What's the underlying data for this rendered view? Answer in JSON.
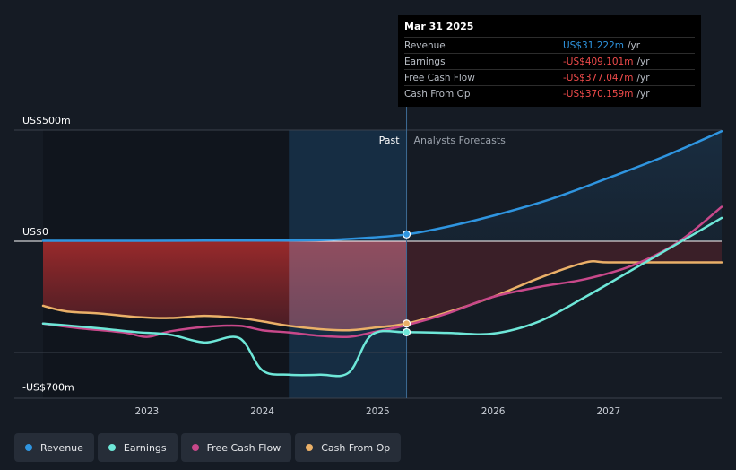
{
  "colors": {
    "revenue": "#2f95e0",
    "earnings": "#6ee7d8",
    "fcf": "#c8488a",
    "cfo": "#eab068",
    "negative": "#ef4b4b"
  },
  "tooltip": {
    "date": "Mar 31 2025",
    "rows": [
      {
        "label": "Revenue",
        "value": "US$31.222m",
        "unit": "/yr",
        "color": "#2f95e0"
      },
      {
        "label": "Earnings",
        "value": "-US$409.101m",
        "unit": "/yr",
        "color": "#ef4b4b"
      },
      {
        "label": "Free Cash Flow",
        "value": "-US$377.047m",
        "unit": "/yr",
        "color": "#ef4b4b"
      },
      {
        "label": "Cash From Op",
        "value": "-US$370.159m",
        "unit": "/yr",
        "color": "#ef4b4b"
      }
    ]
  },
  "chart_data": {
    "type": "line",
    "y_unit": "US$m",
    "ylim": [
      -700,
      500
    ],
    "xlim": [
      2022.1,
      2027.98
    ],
    "x_ticks": [
      2023,
      2024,
      2025,
      2026,
      2027
    ],
    "x_tick_labels": [
      "2023",
      "2024",
      "2025",
      "2026",
      "2027"
    ],
    "y_axis_labels": [
      {
        "value": 500,
        "text": "US$500m"
      },
      {
        "value": 0,
        "text": "US$0"
      },
      {
        "value": -700,
        "text": "-US$700m"
      }
    ],
    "gridlines": [
      500,
      0,
      -500
    ],
    "past_label": "Past",
    "forecast_label": "Analysts Forecasts",
    "past_end": 2025.25,
    "forecast_shade_start": 2024.23,
    "series": [
      {
        "key": "revenue",
        "name": "Revenue",
        "color": "#2f95e0",
        "x": [
          2022.1,
          2022.6,
          2023.0,
          2023.5,
          2024.0,
          2024.5,
          2024.9,
          2025.25,
          2025.6,
          2026.0,
          2026.5,
          2027.0,
          2027.5,
          2027.98
        ],
        "y": [
          2,
          2,
          2,
          3,
          3,
          5,
          15,
          31,
          65,
          115,
          190,
          285,
          385,
          495
        ]
      },
      {
        "key": "earnings",
        "name": "Earnings",
        "color": "#6ee7d8",
        "x": [
          2022.1,
          2022.3,
          2022.6,
          2022.9,
          2023.2,
          2023.5,
          2023.8,
          2024.0,
          2024.23,
          2024.5,
          2024.75,
          2024.95,
          2025.25,
          2025.6,
          2026.0,
          2026.4,
          2026.8,
          2027.2,
          2027.6,
          2027.98
        ],
        "y": [
          -370,
          -378,
          -392,
          -408,
          -420,
          -455,
          -435,
          -580,
          -600,
          -600,
          -590,
          -420,
          -409,
          -412,
          -415,
          -360,
          -250,
          -130,
          -10,
          105
        ]
      },
      {
        "key": "fcf",
        "name": "Free Cash Flow",
        "color": "#c8488a",
        "x": [
          2022.1,
          2022.4,
          2022.8,
          2023.0,
          2023.2,
          2023.5,
          2023.8,
          2024.0,
          2024.23,
          2024.5,
          2024.75,
          2024.95,
          2025.25,
          2025.6,
          2026.0,
          2026.4,
          2026.8,
          2027.2,
          2027.6,
          2027.98
        ],
        "y": [
          -370,
          -390,
          -410,
          -430,
          -405,
          -385,
          -380,
          -400,
          -410,
          -425,
          -430,
          -410,
          -377,
          -325,
          -250,
          -205,
          -170,
          -110,
          -5,
          155
        ]
      },
      {
        "key": "cfo",
        "name": "Cash From Op",
        "color": "#eab068",
        "x": [
          2022.1,
          2022.3,
          2022.6,
          2022.9,
          2023.2,
          2023.5,
          2023.8,
          2024.0,
          2024.23,
          2024.5,
          2024.75,
          2024.95,
          2025.25,
          2025.6,
          2026.0,
          2026.4,
          2026.8,
          2027.0,
          2027.5,
          2027.98
        ],
        "y": [
          -290,
          -315,
          -325,
          -340,
          -345,
          -335,
          -345,
          -360,
          -380,
          -395,
          -400,
          -390,
          -370,
          -320,
          -250,
          -165,
          -95,
          -95,
          -95,
          -95
        ]
      }
    ],
    "markers": [
      {
        "series": "revenue",
        "x": 2025.25,
        "y": 31
      },
      {
        "series": "cfo",
        "x": 2025.25,
        "y": -370
      },
      {
        "series": "earnings",
        "x": 2025.25,
        "y": -409
      }
    ],
    "legend_position": "bottom-left"
  },
  "legend": [
    {
      "label": "Revenue",
      "color": "#2f95e0"
    },
    {
      "label": "Earnings",
      "color": "#6ee7d8"
    },
    {
      "label": "Free Cash Flow",
      "color": "#c8488a"
    },
    {
      "label": "Cash From Op",
      "color": "#eab068"
    }
  ]
}
